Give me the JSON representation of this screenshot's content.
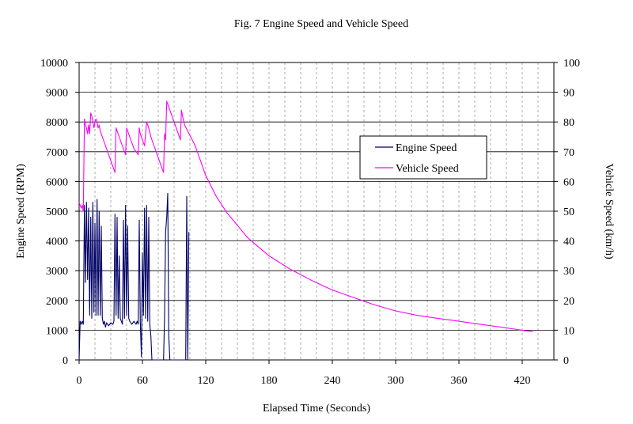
{
  "chart_data": {
    "type": "line",
    "title": "Fig. 7  Engine Speed and Vehicle Speed",
    "xlabel": "Elapsed Time (Seconds)",
    "ylabel": "Engine Speed (RPM)",
    "ylabel_right": "Vehicle Speed (km/h)",
    "xlim": [
      0,
      450
    ],
    "ylim": [
      0,
      10000
    ],
    "ylim_right": [
      0,
      100
    ],
    "x_ticks": [
      "0",
      "60",
      "120",
      "180",
      "240",
      "300",
      "360",
      "420"
    ],
    "y_ticks": [
      "0",
      "1000",
      "2000",
      "3000",
      "4000",
      "5000",
      "6000",
      "7000",
      "8000",
      "9000",
      "10000"
    ],
    "y_ticks_right": [
      "0",
      "10",
      "20",
      "30",
      "40",
      "50",
      "60",
      "70",
      "80",
      "90",
      "100"
    ],
    "grid": {
      "horizontal": "solid",
      "vertical": "dashed"
    },
    "legend_position": "center-right",
    "series": [
      {
        "name": "Engine Speed",
        "axis": "left",
        "color": "#000066",
        "x": [
          0,
          1,
          2,
          3,
          4,
          5,
          6,
          7,
          8,
          9,
          10,
          11,
          12,
          13,
          14,
          15,
          16,
          17,
          18,
          19,
          20,
          21,
          22,
          23,
          24,
          25,
          26,
          28,
          30,
          32,
          33,
          34,
          35,
          36,
          37,
          38,
          39,
          40,
          41,
          42,
          43,
          44,
          45,
          46,
          47,
          48,
          50,
          52,
          54,
          55,
          56,
          57,
          58,
          59,
          60,
          61,
          62,
          63,
          64,
          65,
          66,
          67,
          68,
          69,
          70,
          71,
          72,
          73,
          74,
          75,
          76,
          77,
          78,
          79,
          80,
          81,
          82,
          83,
          84,
          85,
          86,
          87,
          88,
          90,
          92,
          94,
          96,
          97,
          98,
          99,
          100,
          101,
          102,
          103,
          104
        ],
        "values": [
          0,
          1300,
          1200,
          1300,
          1200,
          5200,
          2600,
          5300,
          2700,
          5100,
          1500,
          4800,
          1400,
          5300,
          1600,
          4600,
          1500,
          5400,
          1500,
          5000,
          1500,
          4500,
          1400,
          1200,
          1300,
          1100,
          1250,
          1150,
          1250,
          1200,
          1300,
          4900,
          1500,
          4800,
          1400,
          3500,
          1400,
          1300,
          1200,
          4700,
          1400,
          5200,
          1500,
          4500,
          1400,
          1300,
          1200,
          1300,
          1200,
          1300,
          1200,
          4700,
          1300,
          100,
          3600,
          1500,
          5100,
          1400,
          5200,
          1300,
          4800,
          1200,
          800,
          0,
          0,
          0,
          0,
          0,
          0,
          0,
          0,
          0,
          0,
          0,
          0,
          1500,
          4300,
          4800,
          5600,
          800,
          0,
          0,
          0,
          0,
          0,
          0,
          0,
          0,
          0,
          0,
          0,
          0,
          5500,
          0,
          4300
        ]
      },
      {
        "name": "Vehicle Speed",
        "axis": "right",
        "color": "#ff00ff",
        "x": [
          0,
          1,
          2,
          3,
          4,
          5,
          6,
          7,
          8,
          9,
          10,
          11,
          12,
          13,
          14,
          15,
          16,
          17,
          18,
          19,
          20,
          22,
          24,
          26,
          28,
          30,
          32,
          34,
          35,
          36,
          38,
          40,
          42,
          44,
          45,
          46,
          48,
          50,
          52,
          54,
          56,
          57,
          58,
          60,
          62,
          64,
          66,
          68,
          70,
          72,
          74,
          76,
          78,
          80,
          81,
          82,
          83,
          84,
          86,
          88,
          90,
          92,
          94,
          96,
          97,
          98,
          100,
          110,
          120,
          130,
          140,
          160,
          180,
          200,
          220,
          240,
          260,
          280,
          300,
          320,
          340,
          360,
          380,
          400,
          410,
          420,
          430
        ],
        "values": [
          53,
          52,
          51,
          52,
          50,
          81,
          79,
          78,
          76,
          79,
          76,
          83,
          82,
          80,
          78,
          80,
          81,
          80,
          78,
          79,
          77,
          75,
          73,
          71,
          69,
          67,
          65,
          63,
          78,
          77,
          75,
          73,
          71,
          69,
          78,
          77,
          75,
          73,
          71,
          70,
          69,
          78,
          76,
          74,
          72,
          80,
          78,
          75,
          73,
          71,
          69,
          67,
          65,
          63,
          76,
          74,
          87,
          86,
          84,
          82,
          80,
          78,
          76,
          74,
          84,
          82,
          79,
          72,
          62,
          55,
          49.5,
          41,
          35,
          30.5,
          26.8,
          23.5,
          21,
          18.5,
          16.5,
          15,
          14,
          13,
          12,
          11,
          10.5,
          10,
          9.5
        ]
      }
    ]
  }
}
